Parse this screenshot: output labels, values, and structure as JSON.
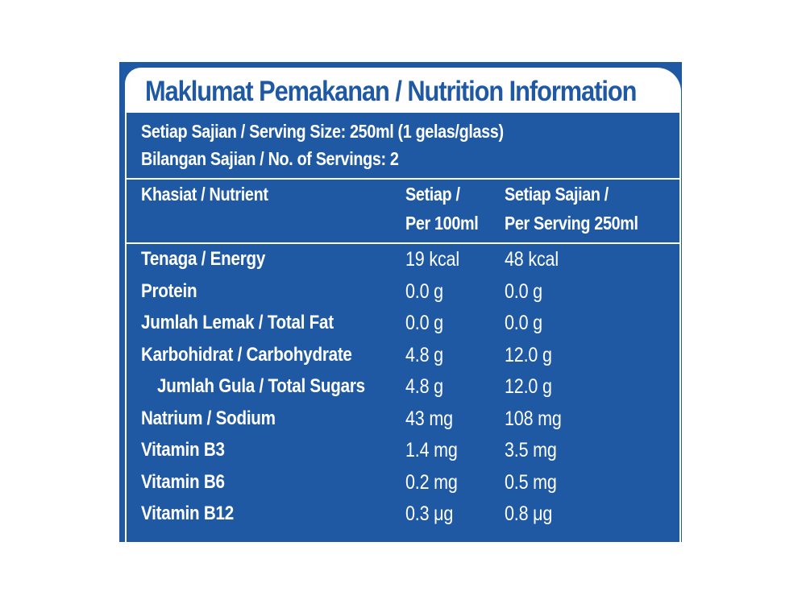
{
  "title": "Maklumat Pemakanan / Nutrition Information",
  "serving_size": "Setiap Sajian / Serving Size: 250ml (1 gelas/glass)",
  "servings": "Bilangan Sajian / No. of Servings: 2",
  "columns": {
    "nutrient": "Khasiat / Nutrient",
    "per100_line1": "Setiap /",
    "per100_line2": "Per 100ml",
    "perserving_line1": "Setiap Sajian /",
    "perserving_line2": "Per Serving 250ml"
  },
  "rows": [
    {
      "label": "Tenaga / Energy",
      "per100": "19 kcal",
      "serving": "48 kcal"
    },
    {
      "label": "Protein",
      "per100": "0.0 g",
      "serving": "0.0 g"
    },
    {
      "label": "Jumlah Lemak / Total Fat",
      "per100": "0.0 g",
      "serving": "0.0 g"
    },
    {
      "label": "Karbohidrat / Carbohydrate",
      "per100": "4.8 g",
      "serving": "12.0 g"
    },
    {
      "label": "Jumlah Gula / Total Sugars",
      "per100": "4.8 g",
      "serving": "12.0 g"
    },
    {
      "label": "Natrium / Sodium",
      "per100": "43 mg",
      "serving": "108 mg"
    },
    {
      "label": "Vitamin B3",
      "per100": "1.4 mg",
      "serving": "3.5 mg"
    },
    {
      "label": "Vitamin B6",
      "per100": "0.2 mg",
      "serving": "0.5 mg"
    },
    {
      "label": "Vitamin B12",
      "per100": "0.3 μg",
      "serving": "0.8 μg"
    }
  ],
  "colors": {
    "panel_blue": "#1f59a3",
    "text_white": "#ffffff"
  }
}
